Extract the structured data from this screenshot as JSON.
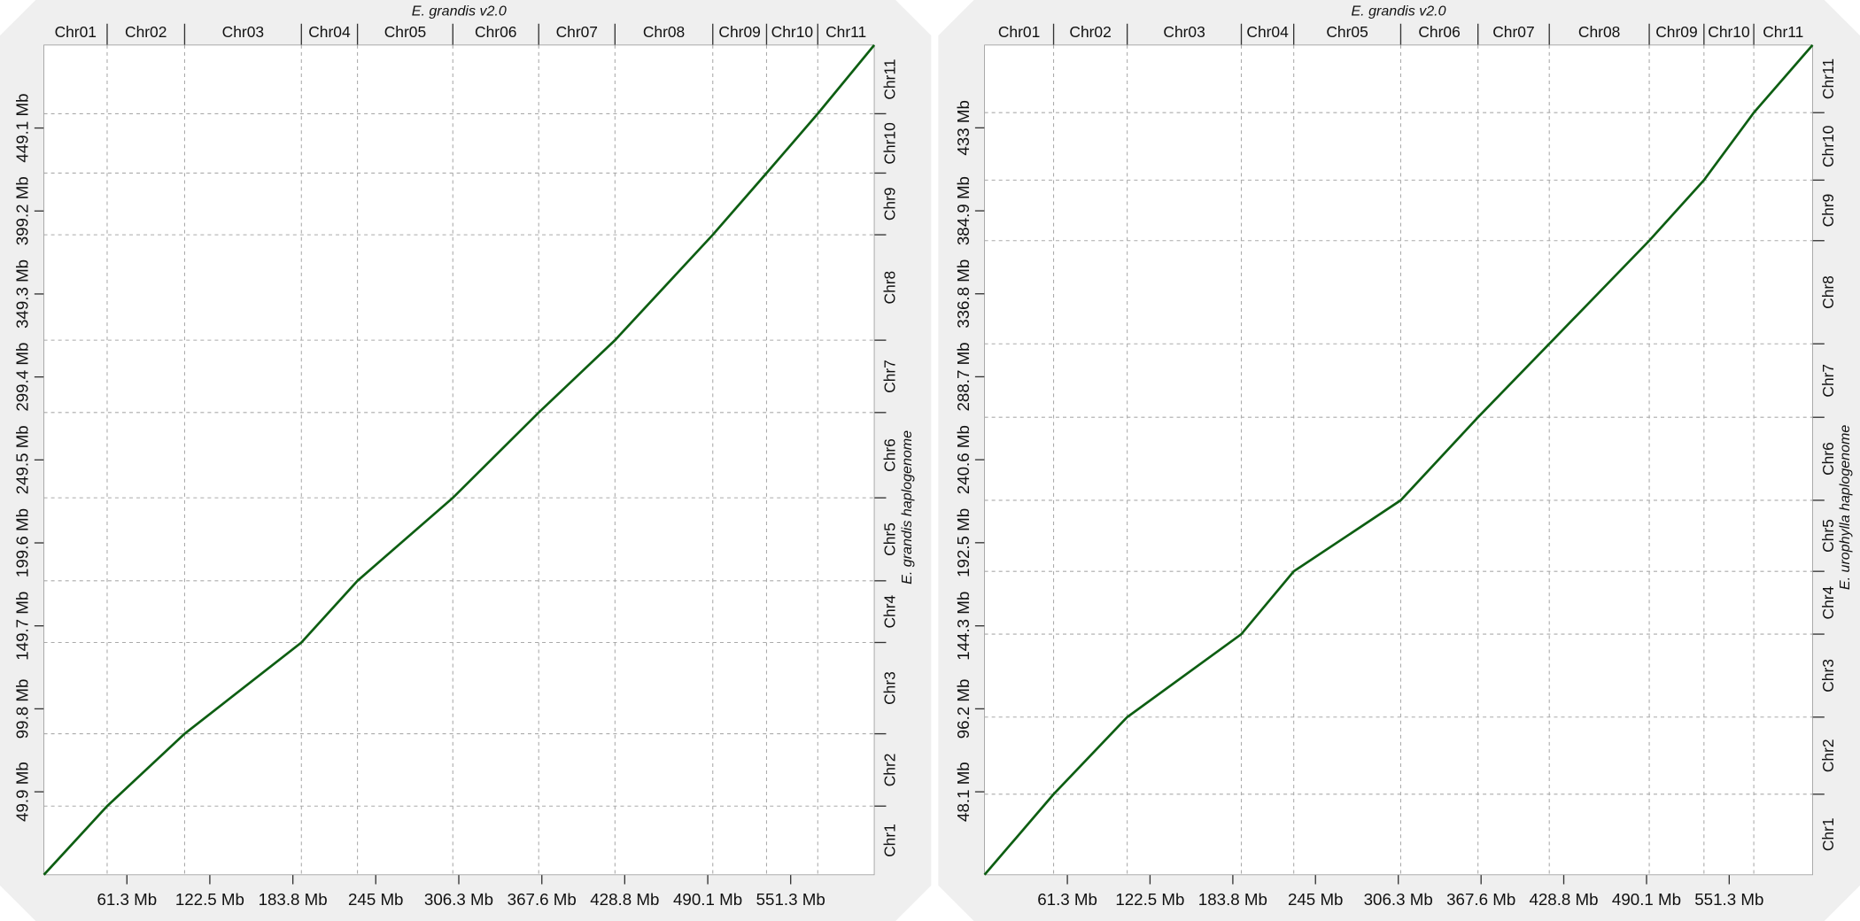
{
  "chart_data": [
    {
      "type": "dotplot",
      "xlabel": "E. grandis v2.0",
      "ylabel": "E. grandis haplogenome",
      "top_labels": [
        "Chr01",
        "Chr02",
        "Chr03",
        "Chr04",
        "Chr05",
        "Chr06",
        "Chr07",
        "Chr08",
        "Chr09",
        "Chr10",
        "Chr11"
      ],
      "xbreaks": [
        46.7,
        103.9,
        190.1,
        231.5,
        301.9,
        365.3,
        421.6,
        493.8,
        533.5,
        571.3
      ],
      "right_labels": [
        "Chr1",
        "Chr2",
        "Chr3",
        "Chr4",
        "Chr5",
        "Chr6",
        "Chr7",
        "Chr8",
        "Chr9",
        "Chr10",
        "Chr11"
      ],
      "ybreaks": [
        41.3,
        84.8,
        139.7,
        176.8,
        226.7,
        278.0,
        321.5,
        384.9,
        422.0,
        457.7
      ],
      "xlim": [
        0,
        613
      ],
      "ylim": [
        0,
        499
      ],
      "xticks": [
        {
          "value": 61.3,
          "label": "61.3 Mb"
        },
        {
          "value": 122.5,
          "label": "122.5 Mb"
        },
        {
          "value": 183.8,
          "label": "183.8 Mb"
        },
        {
          "value": 245,
          "label": "245 Mb"
        },
        {
          "value": 306.3,
          "label": "306.3 Mb"
        },
        {
          "value": 367.6,
          "label": "367.6 Mb"
        },
        {
          "value": 428.8,
          "label": "428.8 Mb"
        },
        {
          "value": 490.1,
          "label": "490.1 Mb"
        },
        {
          "value": 551.3,
          "label": "551.3 Mb"
        }
      ],
      "yticks": [
        {
          "value": 49.9,
          "label": "49.9 Mb"
        },
        {
          "value": 99.8,
          "label": "99.8 Mb"
        },
        {
          "value": 149.7,
          "label": "149.7 Mb"
        },
        {
          "value": 199.6,
          "label": "199.6 Mb"
        },
        {
          "value": 249.5,
          "label": "249.5 Mb"
        },
        {
          "value": 299.4,
          "label": "299.4 Mb"
        },
        {
          "value": 349.3,
          "label": "349.3 Mb"
        },
        {
          "value": 399.2,
          "label": "399.2 Mb"
        },
        {
          "value": 449.1,
          "label": "449.1 Mb"
        }
      ],
      "series": [
        {
          "color": "#0d5e12",
          "x": [
            0,
            46.7,
            103.9,
            190.1,
            231.5,
            301.9,
            365.3,
            421.6,
            493.8,
            533.5,
            571.3,
            613
          ],
          "values": [
            0,
            41.3,
            84.8,
            139.7,
            176.8,
            226.7,
            278.0,
            321.5,
            384.9,
            422.0,
            457.7,
            499
          ]
        }
      ]
    },
    {
      "type": "dotplot",
      "xlabel": "E. grandis v2.0",
      "ylabel": "E. urophylla haplogenome",
      "top_labels": [
        "Chr01",
        "Chr02",
        "Chr03",
        "Chr04",
        "Chr05",
        "Chr06",
        "Chr07",
        "Chr08",
        "Chr09",
        "Chr10",
        "Chr11"
      ],
      "xbreaks": [
        51.1,
        105.6,
        190.1,
        228.9,
        308.1,
        365.3,
        418.1,
        492.1,
        532.6,
        569.5
      ],
      "right_labels": [
        "Chr1",
        "Chr2",
        "Chr3",
        "Chr4",
        "Chr5",
        "Chr6",
        "Chr7",
        "Chr8",
        "Chr9",
        "Chr10",
        "Chr11"
      ],
      "ybreaks": [
        46.7,
        91.4,
        139.5,
        175.9,
        217.1,
        265.2,
        307.8,
        367.6,
        402.7,
        441.8
      ],
      "xlim": [
        0,
        613
      ],
      "ylim": [
        0,
        481
      ],
      "xticks": [
        {
          "value": 61.3,
          "label": "61.3 Mb"
        },
        {
          "value": 122.5,
          "label": "122.5 Mb"
        },
        {
          "value": 183.8,
          "label": "183.8 Mb"
        },
        {
          "value": 245,
          "label": "245 Mb"
        },
        {
          "value": 306.3,
          "label": "306.3 Mb"
        },
        {
          "value": 367.6,
          "label": "367.6 Mb"
        },
        {
          "value": 428.8,
          "label": "428.8 Mb"
        },
        {
          "value": 490.1,
          "label": "490.1 Mb"
        },
        {
          "value": 551.3,
          "label": "551.3 Mb"
        }
      ],
      "yticks": [
        {
          "value": 48.1,
          "label": "48.1 Mb"
        },
        {
          "value": 96.2,
          "label": "96.2 Mb"
        },
        {
          "value": 144.3,
          "label": "144.3 Mb"
        },
        {
          "value": 192.5,
          "label": "192.5 Mb"
        },
        {
          "value": 240.6,
          "label": "240.6 Mb"
        },
        {
          "value": 288.7,
          "label": "288.7 Mb"
        },
        {
          "value": 336.8,
          "label": "336.8 Mb"
        },
        {
          "value": 384.9,
          "label": "384.9 Mb"
        },
        {
          "value": 433,
          "label": "433 Mb"
        }
      ],
      "series": [
        {
          "color": "#0d5e12",
          "x": [
            0,
            51.1,
            105.6,
            190.1,
            228.9,
            308.1,
            365.3,
            418.1,
            492.1,
            532.6,
            569.5,
            613
          ],
          "values": [
            0,
            46.7,
            91.4,
            139.5,
            175.9,
            217.1,
            265.2,
            307.8,
            367.6,
            402.7,
            441.8,
            481
          ]
        }
      ]
    }
  ]
}
